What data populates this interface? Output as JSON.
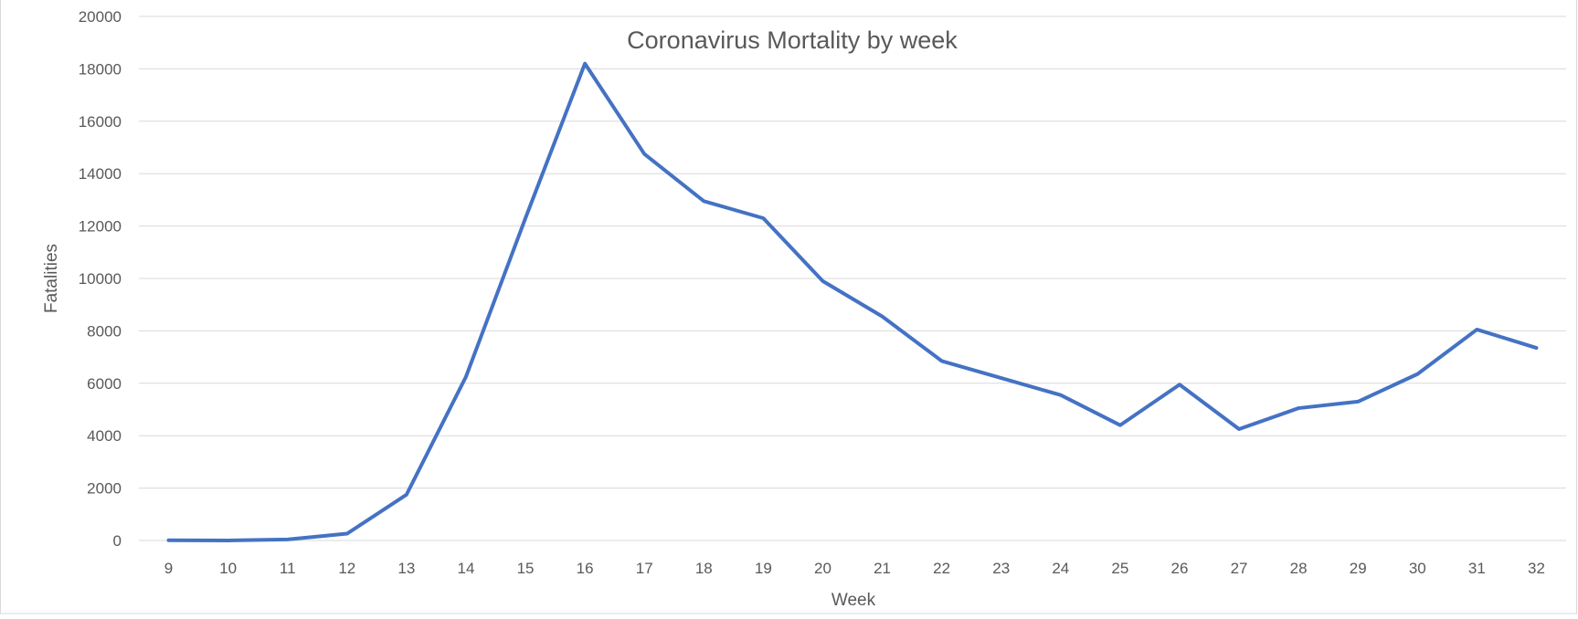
{
  "chart_data": {
    "type": "line",
    "title": "Coronavirus Mortality by week",
    "xlabel": "Week",
    "ylabel": "Fatalities",
    "ylim": [
      0,
      20000
    ],
    "y_ticks": [
      "0",
      "2000",
      "4000",
      "6000",
      "8000",
      "10000",
      "12000",
      "14000",
      "16000",
      "18000",
      "20000"
    ],
    "grid": true,
    "legend": "none",
    "series_color": "#4472C4",
    "grid_color": "#d9d9d9",
    "categories": [
      "9",
      "10",
      "11",
      "12",
      "13",
      "14",
      "15",
      "16",
      "17",
      "18",
      "19",
      "20",
      "21",
      "22",
      "23",
      "24",
      "25",
      "26",
      "27",
      "28",
      "29",
      "30",
      "31",
      "32"
    ],
    "series": [
      {
        "name": "Fatalities",
        "values": [
          10,
          0,
          40,
          260,
          1750,
          6250,
          12300,
          18200,
          14750,
          12950,
          12300,
          9900,
          8550,
          6850,
          6200,
          5550,
          4400,
          5950,
          4250,
          5050,
          5300,
          6350,
          8050,
          7350
        ]
      }
    ]
  }
}
